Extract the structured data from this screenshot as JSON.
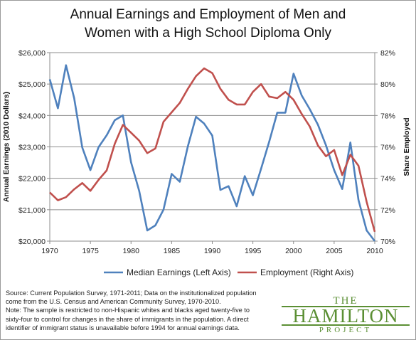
{
  "title_lines": [
    "Annual Earnings and Employment of Men and",
    "Women with a High School Diploma Only"
  ],
  "source_lines": [
    "Source: Current Population Survey, 1971-2011; Data on the institutionalized population",
    "come from the U.S. Census and American Community Survey, 1970-2010.",
    "Note: The sample is restricted to non-Hispanic whites and blacks aged twenty-five to",
    "sixty-four to control  for changes in the share of immigrants in the population. A direct",
    "identifier of immigrant status is unavailable before 1994 for annual earnings data."
  ],
  "logo": {
    "top": "THE",
    "main": "HAMILTON",
    "bottom": "PROJECT"
  },
  "colors": {
    "earnings": "#4f81bd",
    "employment": "#c0504d",
    "logo_green": "#5b8f34"
  },
  "chart_data": {
    "type": "line",
    "title": "Annual Earnings and Employment of Men and Women with a High School Diploma Only",
    "xlabel": "",
    "ylabel_left": "Annual Earnings  (2010 Dollars)",
    "ylabel_right": "Share Employed",
    "xlim": [
      1970,
      2010
    ],
    "x_ticks": [
      "1970",
      "1975",
      "1980",
      "1985",
      "1990",
      "1995",
      "2000",
      "2005",
      "2010"
    ],
    "ylim_left": [
      20000,
      26000
    ],
    "y_ticks_left": [
      "$20,000",
      "$21,000",
      "$22,000",
      "$23,000",
      "$24,000",
      "$25,000",
      "$26,000"
    ],
    "ylim_right": [
      70,
      82
    ],
    "y_ticks_right": [
      "70%",
      "72%",
      "74%",
      "76%",
      "78%",
      "80%",
      "82%"
    ],
    "legend_position": "bottom",
    "x": [
      1970,
      1971,
      1972,
      1973,
      1974,
      1975,
      1976,
      1977,
      1978,
      1979,
      1980,
      1981,
      1982,
      1983,
      1984,
      1985,
      1986,
      1987,
      1988,
      1989,
      1990,
      1991,
      1992,
      1993,
      1994,
      1995,
      1996,
      1997,
      1998,
      1999,
      2000,
      2001,
      2002,
      2003,
      2004,
      2005,
      2006,
      2007,
      2008,
      2009,
      2010
    ],
    "series": [
      {
        "name": "Median Earnings (Left Axis)",
        "axis": "left",
        "color": "#4f81bd",
        "values": [
          25150,
          24230,
          25600,
          24550,
          22980,
          22260,
          22990,
          23370,
          23850,
          24000,
          22510,
          21600,
          20340,
          20500,
          21000,
          22140,
          21890,
          23020,
          23960,
          23740,
          23360,
          21630,
          21750,
          21110,
          22070,
          21460,
          22300,
          23160,
          24090,
          24090,
          25330,
          24640,
          24200,
          23710,
          23050,
          22260,
          21660,
          23140,
          21310,
          20340,
          20000
        ]
      },
      {
        "name": "Employment (Right Axis)",
        "axis": "right",
        "color": "#c0504d",
        "values": [
          73.1,
          72.6,
          72.8,
          73.3,
          73.7,
          73.2,
          73.9,
          74.5,
          76.2,
          77.4,
          76.9,
          76.4,
          75.6,
          75.9,
          77.6,
          78.2,
          78.8,
          79.7,
          80.5,
          81.0,
          80.7,
          79.7,
          79.0,
          78.7,
          78.7,
          79.5,
          80.0,
          79.2,
          79.1,
          79.5,
          79.0,
          78.1,
          77.3,
          76.1,
          75.4,
          75.8,
          74.2,
          75.5,
          74.8,
          72.5,
          70.6
        ]
      }
    ]
  }
}
